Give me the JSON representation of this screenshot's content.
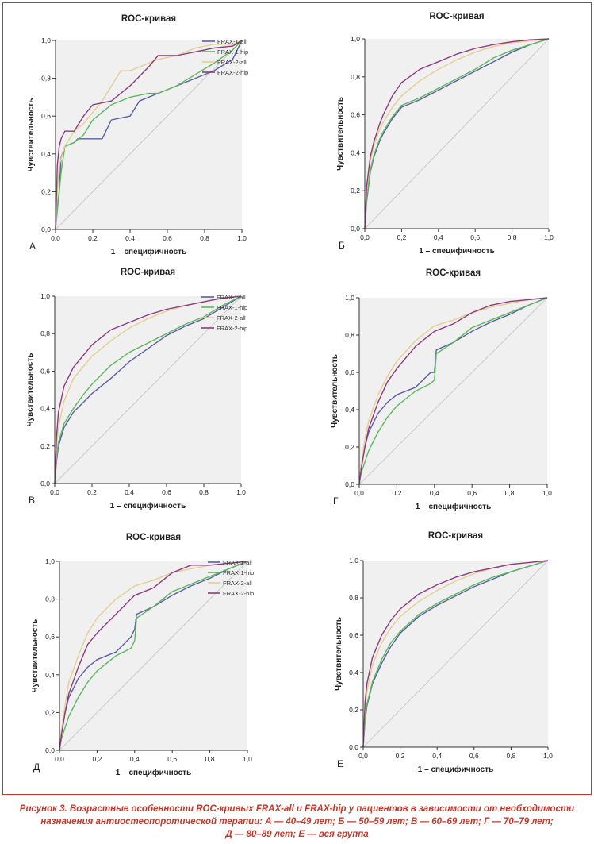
{
  "colors": {
    "frame": "#c0392b",
    "plot_bg": "#f0f0f0",
    "axis": "#333333",
    "diagonal": "#c8c8c8",
    "caption": "#c0392b",
    "series": {
      "FRAX-1-all": "#5b5ea6",
      "FRAX-1-hip": "#5cb85c",
      "FRAX-2-all": "#e3cf8f",
      "FRAX-2-hip": "#8e3a80"
    }
  },
  "caption": {
    "line1": "Рисунок 3. Возрастные особенности ROC-кривых FRAX-all и FRAX-hip у пациентов в зависимости от необходимости",
    "line2": "назначения антиостеопоротической терапии: А — 40–49 лет; Б — 50–59 лет; В — 60–69 лет; Г — 70–79 лет;",
    "line3": "Д — 80–89 лет; Е — вся группа"
  },
  "chart_data": [
    {
      "type": "line",
      "panel_label": "А",
      "title": "ROC-кривая",
      "xlabel": "1 – специфичность",
      "ylabel": "Чувствительность",
      "xlim": [
        0,
        1
      ],
      "ylim": [
        0,
        1
      ],
      "ticks": [
        "0,0",
        "0,2",
        "0,4",
        "0,6",
        "0,8",
        "1,0"
      ],
      "grid": false,
      "legend": "top-right",
      "legend_entries": [
        "FRAX-1-all",
        "FRAX-1-hip",
        "FRAX-2-all",
        "FRAX-2-hip"
      ],
      "series": [
        {
          "name": "FRAX-1-all",
          "x": [
            0,
            0.01,
            0.02,
            0.03,
            0.05,
            0.1,
            0.12,
            0.25,
            0.3,
            0.4,
            0.45,
            0.55,
            0.65,
            0.75,
            0.85,
            0.95,
            1.0
          ],
          "y": [
            0,
            0.12,
            0.2,
            0.38,
            0.44,
            0.46,
            0.48,
            0.48,
            0.58,
            0.6,
            0.68,
            0.72,
            0.76,
            0.8,
            0.84,
            0.9,
            1.0
          ]
        },
        {
          "name": "FRAX-1-hip",
          "x": [
            0,
            0.01,
            0.02,
            0.03,
            0.05,
            0.1,
            0.15,
            0.2,
            0.3,
            0.4,
            0.5,
            0.55,
            0.65,
            0.75,
            0.85,
            0.95,
            1.0
          ],
          "y": [
            0,
            0.1,
            0.2,
            0.3,
            0.44,
            0.46,
            0.5,
            0.58,
            0.66,
            0.7,
            0.72,
            0.72,
            0.76,
            0.82,
            0.88,
            0.95,
            1.0
          ]
        },
        {
          "name": "FRAX-2-all",
          "x": [
            0,
            0.01,
            0.02,
            0.05,
            0.1,
            0.15,
            0.2,
            0.25,
            0.35,
            0.4,
            0.5,
            0.55,
            0.65,
            0.75,
            0.85,
            0.95,
            1.0
          ],
          "y": [
            0,
            0.2,
            0.34,
            0.44,
            0.52,
            0.56,
            0.62,
            0.68,
            0.84,
            0.84,
            0.88,
            0.9,
            0.92,
            0.96,
            0.98,
            0.98,
            1.0
          ]
        },
        {
          "name": "FRAX-2-hip",
          "x": [
            0,
            0.01,
            0.02,
            0.03,
            0.05,
            0.1,
            0.15,
            0.2,
            0.3,
            0.4,
            0.5,
            0.55,
            0.65,
            0.75,
            0.85,
            0.95,
            1.0
          ],
          "y": [
            0,
            0.34,
            0.44,
            0.48,
            0.52,
            0.52,
            0.6,
            0.66,
            0.68,
            0.76,
            0.86,
            0.92,
            0.92,
            0.94,
            0.96,
            0.97,
            1.0
          ]
        }
      ]
    },
    {
      "type": "line",
      "panel_label": "Б",
      "title": "ROC-кривая",
      "xlabel": "1 – специфичность",
      "ylabel": "Чувствительность",
      "xlim": [
        0,
        1
      ],
      "ylim": [
        0,
        1
      ],
      "ticks": [
        "0,0",
        "0,2",
        "0,4",
        "0,6",
        "0,8",
        "1,0"
      ],
      "grid": false,
      "series": [
        {
          "name": "FRAX-1-all",
          "x": [
            0,
            0.01,
            0.02,
            0.03,
            0.05,
            0.08,
            0.1,
            0.15,
            0.2,
            0.3,
            0.4,
            0.5,
            0.6,
            0.7,
            0.8,
            0.9,
            1.0
          ],
          "y": [
            0,
            0.14,
            0.22,
            0.3,
            0.38,
            0.46,
            0.5,
            0.58,
            0.64,
            0.68,
            0.73,
            0.78,
            0.83,
            0.88,
            0.93,
            0.97,
            1.0
          ]
        },
        {
          "name": "FRAX-1-hip",
          "x": [
            0,
            0.01,
            0.02,
            0.03,
            0.05,
            0.08,
            0.1,
            0.15,
            0.2,
            0.3,
            0.4,
            0.5,
            0.6,
            0.7,
            0.8,
            0.9,
            1.0
          ],
          "y": [
            0,
            0.15,
            0.23,
            0.31,
            0.39,
            0.47,
            0.51,
            0.59,
            0.65,
            0.69,
            0.74,
            0.79,
            0.84,
            0.9,
            0.94,
            0.97,
            1.0
          ]
        },
        {
          "name": "FRAX-2-all",
          "x": [
            0,
            0.01,
            0.02,
            0.03,
            0.05,
            0.08,
            0.1,
            0.15,
            0.2,
            0.3,
            0.4,
            0.5,
            0.6,
            0.7,
            0.8,
            0.9,
            1.0
          ],
          "y": [
            0,
            0.2,
            0.28,
            0.36,
            0.44,
            0.52,
            0.56,
            0.64,
            0.7,
            0.78,
            0.84,
            0.89,
            0.93,
            0.96,
            0.98,
            0.99,
            1.0
          ]
        },
        {
          "name": "FRAX-2-hip",
          "x": [
            0,
            0.01,
            0.02,
            0.03,
            0.05,
            0.08,
            0.1,
            0.15,
            0.2,
            0.3,
            0.4,
            0.5,
            0.6,
            0.7,
            0.8,
            0.9,
            1.0
          ],
          "y": [
            0,
            0.22,
            0.3,
            0.38,
            0.46,
            0.55,
            0.6,
            0.7,
            0.77,
            0.84,
            0.88,
            0.92,
            0.95,
            0.97,
            0.985,
            0.995,
            1.0
          ]
        }
      ]
    },
    {
      "type": "line",
      "panel_label": "В",
      "title": "ROC-кривая",
      "xlabel": "1 – специфичность",
      "ylabel": "Чувствительность",
      "xlim": [
        0,
        1
      ],
      "ylim": [
        0,
        1
      ],
      "ticks": [
        "0,0",
        "0,2",
        "0,4",
        "0,6",
        "0,8",
        "1,0"
      ],
      "grid": false,
      "legend": "top-right",
      "legend_entries": [
        "FRAX-1-all",
        "FRAX-1-hip",
        "FRAX-2-all",
        "FRAX-2-hip"
      ],
      "series": [
        {
          "name": "FRAX-1-all",
          "x": [
            0,
            0.01,
            0.02,
            0.05,
            0.1,
            0.15,
            0.2,
            0.3,
            0.4,
            0.5,
            0.6,
            0.7,
            0.8,
            0.9,
            1.0
          ],
          "y": [
            0,
            0.12,
            0.2,
            0.3,
            0.38,
            0.43,
            0.48,
            0.56,
            0.65,
            0.72,
            0.79,
            0.84,
            0.88,
            0.94,
            1.0
          ]
        },
        {
          "name": "FRAX-1-hip",
          "x": [
            0,
            0.01,
            0.02,
            0.05,
            0.1,
            0.15,
            0.2,
            0.3,
            0.4,
            0.5,
            0.6,
            0.7,
            0.8,
            0.9,
            1.0
          ],
          "y": [
            0,
            0.14,
            0.22,
            0.32,
            0.4,
            0.47,
            0.53,
            0.63,
            0.7,
            0.75,
            0.8,
            0.85,
            0.89,
            0.95,
            1.0
          ]
        },
        {
          "name": "FRAX-2-all",
          "x": [
            0,
            0.01,
            0.02,
            0.05,
            0.1,
            0.15,
            0.2,
            0.3,
            0.4,
            0.5,
            0.6,
            0.7,
            0.8,
            0.9,
            1.0
          ],
          "y": [
            0,
            0.2,
            0.3,
            0.44,
            0.56,
            0.62,
            0.68,
            0.76,
            0.83,
            0.88,
            0.92,
            0.95,
            0.97,
            0.99,
            1.0
          ]
        },
        {
          "name": "FRAX-2-hip",
          "x": [
            0,
            0.01,
            0.02,
            0.05,
            0.1,
            0.15,
            0.2,
            0.3,
            0.4,
            0.5,
            0.6,
            0.7,
            0.8,
            0.9,
            1.0
          ],
          "y": [
            0,
            0.25,
            0.38,
            0.52,
            0.62,
            0.68,
            0.74,
            0.82,
            0.86,
            0.9,
            0.93,
            0.95,
            0.97,
            0.99,
            1.0
          ]
        }
      ]
    },
    {
      "type": "line",
      "panel_label": "Г",
      "title": "ROC-кривая",
      "xlabel": "1 – специфичность",
      "ylabel": "Чувствительность",
      "xlim": [
        0,
        1
      ],
      "ylim": [
        0,
        1
      ],
      "ticks": [
        "0,0",
        "0,2",
        "0,4",
        "0,6",
        "0,8",
        "1,0"
      ],
      "grid": false,
      "series": [
        {
          "name": "FRAX-1-all",
          "x": [
            0,
            0.01,
            0.03,
            0.05,
            0.1,
            0.15,
            0.2,
            0.3,
            0.38,
            0.4,
            0.41,
            0.5,
            0.6,
            0.7,
            0.8,
            0.9,
            1.0
          ],
          "y": [
            0,
            0.1,
            0.2,
            0.28,
            0.38,
            0.44,
            0.48,
            0.52,
            0.6,
            0.6,
            0.72,
            0.76,
            0.82,
            0.87,
            0.91,
            0.96,
            1.0
          ]
        },
        {
          "name": "FRAX-1-hip",
          "x": [
            0,
            0.01,
            0.03,
            0.05,
            0.1,
            0.15,
            0.2,
            0.3,
            0.38,
            0.4,
            0.41,
            0.5,
            0.6,
            0.7,
            0.8,
            0.9,
            1.0
          ],
          "y": [
            0,
            0.06,
            0.12,
            0.18,
            0.28,
            0.36,
            0.42,
            0.5,
            0.54,
            0.56,
            0.7,
            0.76,
            0.84,
            0.88,
            0.92,
            0.96,
            1.0
          ]
        },
        {
          "name": "FRAX-2-all",
          "x": [
            0,
            0.01,
            0.03,
            0.05,
            0.1,
            0.15,
            0.2,
            0.3,
            0.4,
            0.5,
            0.6,
            0.7,
            0.8,
            0.9,
            1.0
          ],
          "y": [
            0,
            0.1,
            0.24,
            0.34,
            0.48,
            0.58,
            0.66,
            0.77,
            0.85,
            0.88,
            0.92,
            0.95,
            0.97,
            0.99,
            1.0
          ]
        },
        {
          "name": "FRAX-2-hip",
          "x": [
            0,
            0.01,
            0.03,
            0.05,
            0.1,
            0.15,
            0.2,
            0.3,
            0.4,
            0.5,
            0.6,
            0.7,
            0.8,
            0.9,
            1.0
          ],
          "y": [
            0,
            0.08,
            0.2,
            0.3,
            0.44,
            0.55,
            0.62,
            0.74,
            0.82,
            0.86,
            0.92,
            0.96,
            0.98,
            0.99,
            1.0
          ]
        }
      ]
    },
    {
      "type": "line",
      "panel_label": "Д",
      "title": "ROC-кривая",
      "xlabel": "1 – специфичность",
      "ylabel": "Чувствительность",
      "xlim": [
        0,
        1
      ],
      "ylim": [
        0,
        1
      ],
      "ticks": [
        "0,0",
        "0,2",
        "0,4",
        "0,6",
        "0,8",
        "1,0"
      ],
      "grid": false,
      "legend": "top-right",
      "legend_entries": [
        "FRAX-1-all",
        "FRAX-1-hip",
        "FRAX-2-all",
        "FRAX-2-hip"
      ],
      "series": [
        {
          "name": "FRAX-1-all",
          "x": [
            0,
            0.01,
            0.03,
            0.05,
            0.1,
            0.15,
            0.2,
            0.3,
            0.38,
            0.4,
            0.41,
            0.5,
            0.6,
            0.7,
            0.8,
            0.9,
            1.0
          ],
          "y": [
            0,
            0.1,
            0.2,
            0.28,
            0.38,
            0.44,
            0.48,
            0.52,
            0.6,
            0.64,
            0.72,
            0.76,
            0.82,
            0.87,
            0.91,
            0.96,
            1.0
          ]
        },
        {
          "name": "FRAX-1-hip",
          "x": [
            0,
            0.01,
            0.03,
            0.05,
            0.1,
            0.15,
            0.2,
            0.3,
            0.38,
            0.4,
            0.41,
            0.5,
            0.6,
            0.7,
            0.8,
            0.9,
            1.0
          ],
          "y": [
            0,
            0.06,
            0.12,
            0.18,
            0.28,
            0.36,
            0.42,
            0.5,
            0.54,
            0.58,
            0.7,
            0.76,
            0.84,
            0.88,
            0.92,
            0.96,
            1.0
          ]
        },
        {
          "name": "FRAX-2-all",
          "x": [
            0,
            0.01,
            0.03,
            0.05,
            0.1,
            0.15,
            0.2,
            0.3,
            0.4,
            0.5,
            0.6,
            0.7,
            0.8,
            0.9,
            1.0
          ],
          "y": [
            0,
            0.1,
            0.24,
            0.36,
            0.5,
            0.62,
            0.7,
            0.8,
            0.87,
            0.9,
            0.94,
            0.96,
            0.98,
            0.99,
            1.0
          ]
        },
        {
          "name": "FRAX-2-hip",
          "x": [
            0,
            0.01,
            0.03,
            0.05,
            0.1,
            0.15,
            0.2,
            0.3,
            0.4,
            0.5,
            0.6,
            0.7,
            0.8,
            0.9,
            1.0
          ],
          "y": [
            0,
            0.08,
            0.2,
            0.3,
            0.44,
            0.56,
            0.62,
            0.72,
            0.82,
            0.86,
            0.94,
            0.98,
            0.98,
            0.99,
            1.0
          ]
        }
      ]
    },
    {
      "type": "line",
      "panel_label": "Е",
      "title": "ROC-кривая",
      "xlabel": "1 – специфичность",
      "ylabel": "Чувствительность",
      "xlim": [
        0,
        1
      ],
      "ylim": [
        0,
        1
      ],
      "ticks": [
        "0,0",
        "0,2",
        "0,4",
        "0,6",
        "0,8",
        "1,0"
      ],
      "grid": false,
      "series": [
        {
          "name": "FRAX-1-all",
          "x": [
            0,
            0.01,
            0.02,
            0.05,
            0.1,
            0.15,
            0.2,
            0.3,
            0.4,
            0.5,
            0.6,
            0.7,
            0.8,
            0.9,
            1.0
          ],
          "y": [
            0,
            0.14,
            0.22,
            0.34,
            0.45,
            0.54,
            0.61,
            0.7,
            0.76,
            0.81,
            0.86,
            0.9,
            0.94,
            0.97,
            1.0
          ]
        },
        {
          "name": "FRAX-1-hip",
          "x": [
            0,
            0.01,
            0.02,
            0.05,
            0.1,
            0.15,
            0.2,
            0.3,
            0.4,
            0.5,
            0.6,
            0.7,
            0.8,
            0.9,
            1.0
          ],
          "y": [
            0,
            0.15,
            0.23,
            0.35,
            0.47,
            0.56,
            0.62,
            0.71,
            0.77,
            0.82,
            0.87,
            0.91,
            0.94,
            0.97,
            1.0
          ]
        },
        {
          "name": "FRAX-2-all",
          "x": [
            0,
            0.01,
            0.02,
            0.05,
            0.1,
            0.15,
            0.2,
            0.3,
            0.4,
            0.5,
            0.6,
            0.7,
            0.8,
            0.9,
            1.0
          ],
          "y": [
            0,
            0.2,
            0.3,
            0.44,
            0.56,
            0.64,
            0.7,
            0.78,
            0.84,
            0.89,
            0.93,
            0.96,
            0.98,
            0.99,
            1.0
          ]
        },
        {
          "name": "FRAX-2-hip",
          "x": [
            0,
            0.01,
            0.02,
            0.05,
            0.1,
            0.15,
            0.2,
            0.3,
            0.4,
            0.5,
            0.6,
            0.7,
            0.8,
            0.9,
            1.0
          ],
          "y": [
            0,
            0.24,
            0.34,
            0.48,
            0.6,
            0.68,
            0.74,
            0.82,
            0.87,
            0.91,
            0.94,
            0.96,
            0.98,
            0.99,
            1.0
          ]
        }
      ]
    }
  ]
}
